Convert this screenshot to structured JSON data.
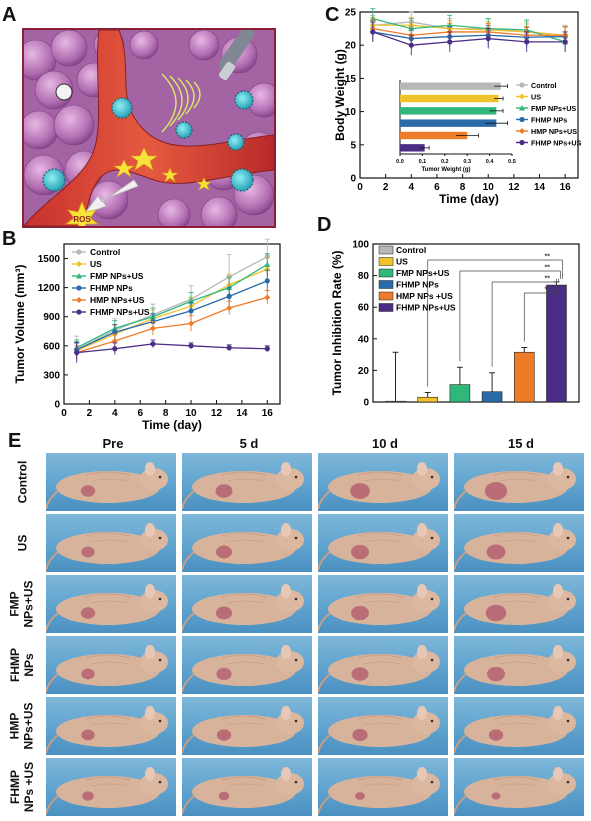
{
  "panels": {
    "a": "A",
    "b": "B",
    "c": "C",
    "d": "D",
    "e": "E"
  },
  "schematic": {
    "ros_label": "ROS"
  },
  "colors": {
    "control": "#b8b8b8",
    "us": "#f2c22d",
    "fmp_us": "#2fb87a",
    "fhmp": "#2a6aa8",
    "hmp_us": "#ee7b27",
    "fhmp_us": "#4b2d86"
  },
  "chart_data": [
    {
      "id": "B",
      "type": "line",
      "xlabel": "Time (day)",
      "ylabel": "Tumor Volume (mm³)",
      "x": [
        1,
        4,
        7,
        10,
        13,
        16
      ],
      "xticks": [
        0,
        2,
        4,
        6,
        8,
        10,
        12,
        14,
        16
      ],
      "yticks": [
        0,
        300,
        600,
        900,
        1200,
        1500
      ],
      "xlim": [
        0,
        17
      ],
      "ylim": [
        0,
        1650
      ],
      "series": [
        {
          "name": "Control",
          "values": [
            560,
            760,
            920,
            1080,
            1310,
            1520
          ],
          "err": [
            140,
            120,
            110,
            140,
            230,
            180
          ]
        },
        {
          "name": "US",
          "values": [
            550,
            720,
            880,
            1010,
            1230,
            1390
          ],
          "err": [
            90,
            90,
            90,
            90,
            110,
            120
          ]
        },
        {
          "name": "FMP NPs+US",
          "values": [
            580,
            780,
            900,
            1060,
            1200,
            1440
          ],
          "err": [
            80,
            80,
            90,
            90,
            110,
            110
          ]
        },
        {
          "name": "FHMP NPs",
          "values": [
            560,
            740,
            850,
            960,
            1110,
            1270
          ],
          "err": [
            80,
            80,
            80,
            90,
            90,
            110
          ]
        },
        {
          "name": "HMP NPs+US",
          "values": [
            530,
            650,
            780,
            830,
            990,
            1100
          ],
          "err": [
            70,
            70,
            70,
            80,
            70,
            70
          ]
        },
        {
          "name": "FHMP NPs+US",
          "values": [
            530,
            570,
            620,
            600,
            580,
            570
          ],
          "err": [
            100,
            60,
            40,
            30,
            30,
            30
          ]
        }
      ]
    },
    {
      "id": "C",
      "type": "line",
      "xlabel": "Time (day)",
      "ylabel": "Body Weight (g)",
      "x": [
        1,
        4,
        7,
        10,
        13,
        16
      ],
      "xticks": [
        0,
        2,
        4,
        6,
        8,
        10,
        12,
        14,
        16
      ],
      "yticks": [
        0,
        5,
        10,
        15,
        20,
        25
      ],
      "xlim": [
        0,
        17
      ],
      "ylim": [
        0,
        25
      ],
      "series": [
        {
          "name": "Control",
          "values": [
            23,
            23.5,
            22.5,
            22.5,
            22,
            21.5
          ],
          "err": [
            1.5,
            1.5,
            1.5,
            1.5,
            1.5,
            1.5
          ]
        },
        {
          "name": "US",
          "values": [
            23,
            23,
            22.5,
            22.3,
            22,
            21.5
          ],
          "err": [
            1.2,
            1.2,
            1.2,
            1.2,
            1.2,
            1.2
          ]
        },
        {
          "name": "FMP NPs+US",
          "values": [
            24,
            22.5,
            23,
            22.5,
            22.3,
            20.5
          ],
          "err": [
            1.5,
            1.5,
            1.5,
            1.5,
            1.5,
            1.5
          ]
        },
        {
          "name": "FHMP NPs",
          "values": [
            22,
            21,
            21.3,
            21.5,
            21.2,
            21.3
          ],
          "err": [
            1.5,
            1.5,
            1.5,
            1.5,
            1.5,
            1.5
          ]
        },
        {
          "name": "HMP NPs+US",
          "values": [
            22.5,
            21.5,
            22,
            22,
            21.5,
            21.5
          ],
          "err": [
            1.3,
            1.3,
            1.3,
            1.3,
            1.3,
            1.3
          ]
        },
        {
          "name": "FHMP NPs+US",
          "values": [
            22,
            20,
            20.5,
            21,
            20.5,
            20.5
          ],
          "err": [
            1.5,
            1.5,
            1.5,
            1.5,
            1.5,
            1.5
          ]
        }
      ],
      "inset": {
        "type": "bar",
        "orientation": "horizontal",
        "xlabel": "Tumor Weight (g)",
        "xticks": [
          "0.0",
          "0.1",
          "0.2",
          "0.3",
          "0.4",
          "0.5"
        ],
        "xlim": [
          0,
          0.5
        ],
        "categories": [
          "Control",
          "US",
          "FMP NPs+US",
          "FHMP NPs",
          "HMP NPs+US",
          "FHMP NPs+US"
        ],
        "values": [
          0.45,
          0.44,
          0.43,
          0.43,
          0.3,
          0.11
        ],
        "err": [
          0.03,
          0.02,
          0.03,
          0.05,
          0.05,
          0.02
        ]
      }
    },
    {
      "id": "D",
      "type": "bar",
      "ylabel": "Tumor Inhibition Rate (%)",
      "yticks": [
        0,
        20,
        40,
        60,
        80,
        100
      ],
      "ylim": [
        0,
        100
      ],
      "categories": [
        "Control",
        "US",
        "FMP NPs+US",
        "FHMP NPs",
        "HMP NPs +US",
        "FHMP NPs+US"
      ],
      "values": [
        0.5,
        3,
        11,
        6.5,
        31.5,
        74
      ],
      "err": [
        31,
        3,
        11,
        12,
        3,
        2
      ],
      "significance": [
        "**",
        "**",
        "**",
        "**"
      ]
    }
  ],
  "photo_grid": {
    "columns": [
      "Pre",
      "5 d",
      "10 d",
      "15 d"
    ],
    "rows": [
      {
        "label": [
          "Control"
        ],
        "tumor": [
          0.35,
          0.5,
          0.65,
          0.8
        ]
      },
      {
        "label": [
          "US"
        ],
        "tumor": [
          0.3,
          0.45,
          0.55,
          0.6
        ]
      },
      {
        "label": [
          "FMP",
          "NPs+US"
        ],
        "tumor": [
          0.35,
          0.45,
          0.55,
          0.7
        ]
      },
      {
        "label": [
          "FHMP",
          "NPs"
        ],
        "tumor": [
          0.3,
          0.4,
          0.5,
          0.55
        ]
      },
      {
        "label": [
          "HMP",
          "NPs+US"
        ],
        "tumor": [
          0.3,
          0.35,
          0.4,
          0.35
        ]
      },
      {
        "label": [
          "FHMP",
          "NPs +US"
        ],
        "tumor": [
          0.2,
          0.15,
          0.1,
          0.05
        ]
      }
    ]
  }
}
